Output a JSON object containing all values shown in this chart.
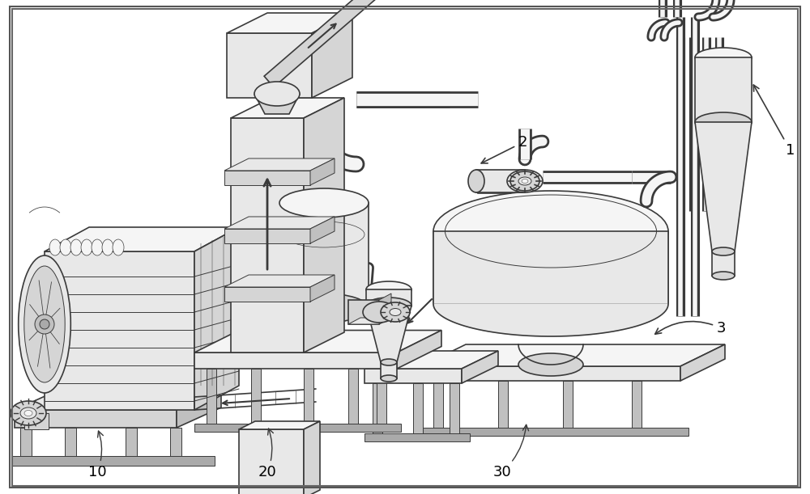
{
  "bg_color": "#ffffff",
  "line_color": "#3a3a3a",
  "lw_main": 1.2,
  "lw_thin": 0.7,
  "lw_pipe": 4.5,
  "fill_white": "#f5f5f5",
  "fill_light": "#e8e8e8",
  "fill_mid": "#d5d5d5",
  "fill_dark": "#c0c0c0",
  "fill_darker": "#aaaaaa",
  "label_1": "1",
  "label_2": "2",
  "label_3": "3",
  "label_10": "10",
  "label_20": "20",
  "label_30": "30",
  "figsize": [
    10.0,
    6.11
  ],
  "dpi": 100
}
